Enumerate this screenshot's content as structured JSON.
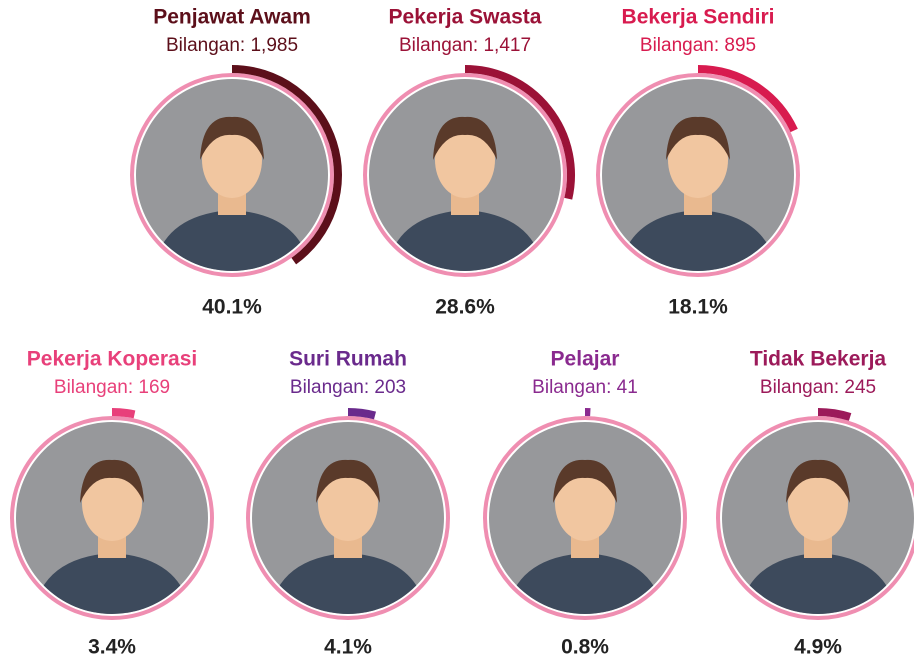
{
  "items": [
    {
      "name": "Penjawat Awam",
      "count": "Bilangan: 1,985",
      "percent": 40.1,
      "percent_label": "40.1%",
      "color": "#5c0f1a"
    },
    {
      "name": "Pekerja Swasta",
      "count": "Bilangan: 1,417",
      "percent": 28.6,
      "percent_label": "28.6%",
      "color": "#9b1237"
    },
    {
      "name": "Bekerja Sendiri",
      "count": "Bilangan: 895",
      "percent": 18.1,
      "percent_label": "18.1%",
      "color": "#d81b4f"
    },
    {
      "name": "Pekerja Koperasi",
      "count": "Bilangan: 169",
      "percent": 3.4,
      "percent_label": "3.4%",
      "color": "#e8407a"
    },
    {
      "name": "Suri Rumah",
      "count": "Bilangan: 203",
      "percent": 4.1,
      "percent_label": "4.1%",
      "color": "#6a2a8c"
    },
    {
      "name": "Pelajar",
      "count": "Bilangan: 41",
      "percent": 0.8,
      "percent_label": "0.8%",
      "color": "#8a2a8f"
    },
    {
      "name": "Tidak Bekerja",
      "count": "Bilangan: 245",
      "percent": 4.9,
      "percent_label": "4.9%",
      "color": "#9c1a5a"
    }
  ]
}
